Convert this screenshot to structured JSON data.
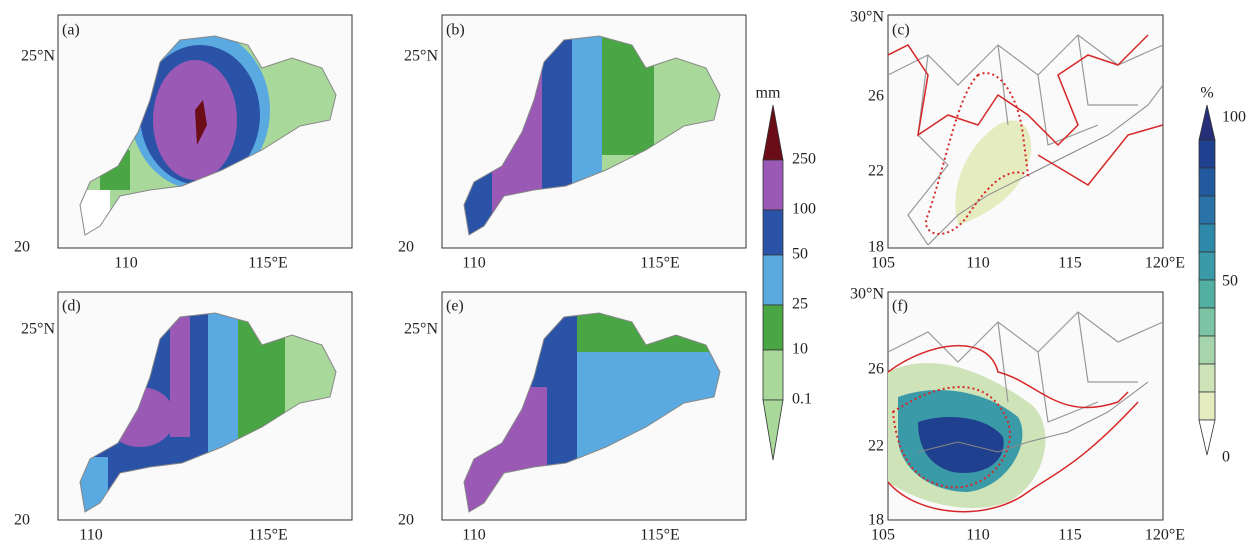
{
  "panels": [
    {
      "label": "(a)",
      "yticks": [
        "25°N",
        "20"
      ],
      "xticks": [
        "110",
        "115°E"
      ]
    },
    {
      "label": "(b)",
      "yticks": [
        "25°N",
        "20"
      ],
      "xticks": [
        "110",
        "115°E"
      ]
    },
    {
      "label": "(c)",
      "yticks": [
        "30°N",
        "26",
        "22",
        "18"
      ],
      "xticks": [
        "105",
        "110",
        "115",
        "120°E"
      ]
    },
    {
      "label": "(d)",
      "yticks": [
        "25°N",
        "20"
      ],
      "xticks": [
        "110",
        "115°E"
      ]
    },
    {
      "label": "(e)",
      "yticks": [
        "25°N",
        "20"
      ],
      "xticks": [
        "110",
        "115°E"
      ]
    },
    {
      "label": "(f)",
      "yticks": [
        "30°N",
        "26",
        "22",
        "18"
      ],
      "xticks": [
        "105",
        "110",
        "115",
        "120°E"
      ]
    }
  ],
  "colorbars": [
    {
      "unit": "mm",
      "ticks": [
        "250",
        "100",
        "50",
        "25",
        "10",
        "0.1"
      ]
    },
    {
      "unit": "%",
      "ticks": [
        "100",
        "50",
        "0"
      ]
    }
  ]
}
